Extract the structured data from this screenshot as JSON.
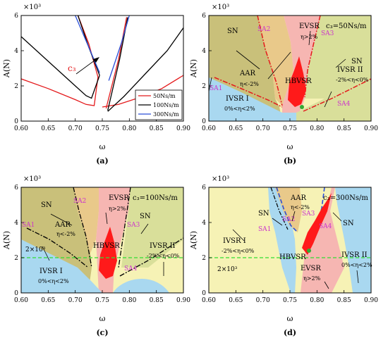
{
  "colors": {
    "red": "#e41a1c",
    "black": "#000000",
    "blue": "#2b4fd8",
    "sn_region": "#c9c07a",
    "aar_region": "#e9c98a",
    "evsr_region": "#f6b6b2",
    "ivsr1_region": "#a9d8f0",
    "ivsr2_region": "#d9df9a",
    "ivsr_light": "#f6f2b5",
    "green_line": "#33dd33",
    "label_magenta": "#cc33cc"
  },
  "chart_data": [
    {
      "type": "line",
      "panel": "(a)",
      "y_scale_label": "×10³",
      "xlabel": "ω",
      "ylabel": "A(N)",
      "xlim": [
        0.6,
        0.9
      ],
      "ylim": [
        0,
        6
      ],
      "xticks": [
        "0.60",
        "0.65",
        "0.70",
        "0.75",
        "0.80",
        "0.85",
        "0.90"
      ],
      "yticks": [
        "0",
        "2",
        "4",
        "6"
      ],
      "annotation": "c₃",
      "legend": [
        "50Ns/m",
        "100Ns/m",
        "300Ns/m"
      ],
      "series": [
        {
          "name": "50Ns/m",
          "color": "red",
          "segments": [
            [
              [
                0.6,
                2.4
              ],
              [
                0.65,
                1.85
              ],
              [
                0.7,
                1.22
              ],
              [
                0.72,
                0.95
              ],
              [
                0.735,
                0.88
              ],
              [
                0.742,
                2.5
              ]
            ],
            [
              [
                0.75,
                0.8
              ],
              [
                0.78,
                0.95
              ],
              [
                0.82,
                1.35
              ],
              [
                0.86,
                1.85
              ],
              [
                0.9,
                2.6
              ]
            ],
            [
              [
                0.705,
                6.0
              ],
              [
                0.725,
                4.4
              ],
              [
                0.742,
                2.5
              ]
            ],
            [
              [
                0.757,
                0.72
              ],
              [
                0.78,
                3.5
              ],
              [
                0.795,
                5.9
              ]
            ]
          ]
        },
        {
          "name": "100Ns/m",
          "color": "black",
          "segments": [
            [
              [
                0.6,
                4.8
              ],
              [
                0.65,
                3.4
              ],
              [
                0.7,
                2.0
              ],
              [
                0.72,
                1.45
              ],
              [
                0.73,
                1.3
              ],
              [
                0.745,
                2.6
              ]
            ],
            [
              [
                0.76,
                0.55
              ],
              [
                0.79,
                1.4
              ],
              [
                0.83,
                2.7
              ],
              [
                0.87,
                4.0
              ],
              [
                0.9,
                5.3
              ]
            ],
            [
              [
                0.705,
                6.0
              ],
              [
                0.725,
                4.2
              ],
              [
                0.745,
                2.6
              ]
            ],
            [
              [
                0.76,
                0.6
              ],
              [
                0.782,
                3.5
              ],
              [
                0.797,
                5.9
              ]
            ]
          ]
        },
        {
          "name": "300Ns/m",
          "color": "blue",
          "segments": [
            [
              [
                0.7,
                6.0
              ],
              [
                0.725,
                4.2
              ],
              [
                0.745,
                2.75
              ]
            ],
            [
              [
                0.762,
                2.3
              ],
              [
                0.785,
                4.4
              ],
              [
                0.8,
                6.0
              ]
            ]
          ]
        }
      ]
    },
    {
      "type": "area",
      "panel": "(b)",
      "y_scale_label": "×10³",
      "xlabel": "ω",
      "ylabel": "A(N)",
      "xlim": [
        0.6,
        0.9
      ],
      "ylim": [
        0,
        6
      ],
      "xticks": [
        "0.60",
        "0.65",
        "0.70",
        "0.75",
        "0.80",
        "0.85",
        "0.90"
      ],
      "yticks": [
        "0",
        "2",
        "4",
        "6"
      ],
      "title": "c₃=50Ns/m",
      "regions": [
        "SN",
        "AAR",
        "η<-2%",
        "EVSR",
        "η>2%",
        "SN",
        "HBVSR",
        "IVSR II",
        "-2%<η<0%",
        "IVSR I",
        "0%<η<2%"
      ],
      "points": [
        "SA1",
        "SA2",
        "SA3",
        "SA4"
      ]
    },
    {
      "type": "area",
      "panel": "(c)",
      "y_scale_label": "×10³",
      "xlabel": "ω",
      "ylabel": "A(N)",
      "xlim": [
        0.6,
        0.9
      ],
      "ylim": [
        0,
        6
      ],
      "xticks": [
        "0.60",
        "0.65",
        "0.70",
        "0.75",
        "0.80",
        "0.85",
        "0.90"
      ],
      "yticks": [
        "0",
        "2",
        "4",
        "6"
      ],
      "title": "c₃=100Ns/m",
      "regions": [
        "SN",
        "AAR",
        "η<-2%",
        "EVSR",
        "η>2%",
        "SN",
        "HBVSR",
        "IVSR II",
        "-2%<η<0%",
        "IVSR I",
        "0%<η<2%"
      ],
      "threshold_label": "2×10³",
      "threshold": 2.0,
      "points": [
        "SA1",
        "SA2",
        "SA3",
        "SA4"
      ]
    },
    {
      "type": "area",
      "panel": "(d)",
      "y_scale_label": "×10³",
      "xlabel": "ω",
      "ylabel": "A(N)",
      "xlim": [
        0.6,
        0.9
      ],
      "ylim": [
        0,
        6
      ],
      "xticks": [
        "0.60",
        "0.65",
        "0.70",
        "0.75",
        "0.80",
        "0.85",
        "0.90"
      ],
      "yticks": [
        "0",
        "2",
        "4",
        "6"
      ],
      "title": "c₃=300Ns/m",
      "regions": [
        "AAR",
        "η<-2%",
        "SN",
        "SN",
        "IVSR I",
        "-2%<η<0%",
        "HBVSR",
        "EVSR",
        "η>2%",
        "IVSR II",
        "0%<η<2%"
      ],
      "threshold_label": "2×10³",
      "threshold": 2.0,
      "points": [
        "SA1",
        "SA2",
        "SA3",
        "SA4"
      ]
    }
  ]
}
